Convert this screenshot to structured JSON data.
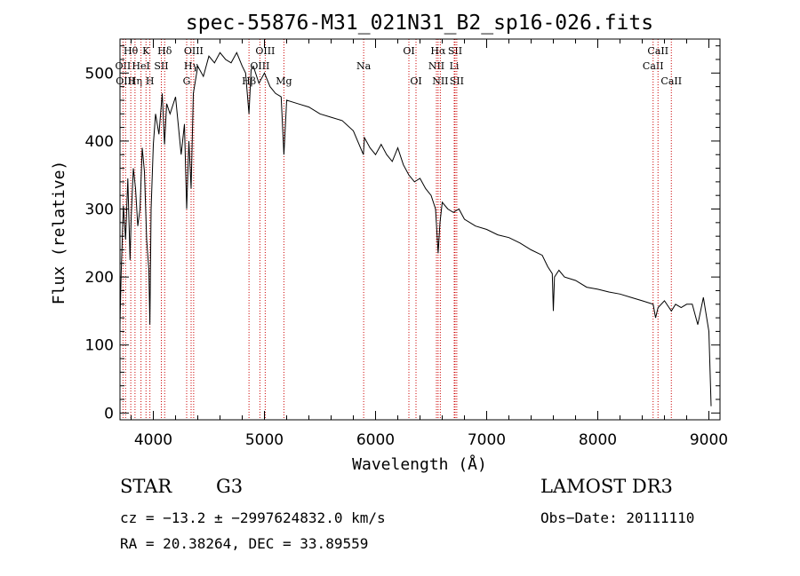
{
  "chart_data": {
    "type": "line",
    "title": "spec-55876-M31_021N31_B2_sp16-026.fits",
    "xlabel": "Wavelength (Å)",
    "ylabel": "Flux (relative)",
    "xlim": [
      3700,
      9100
    ],
    "ylim": [
      -10,
      550
    ],
    "x_ticks": [
      4000,
      5000,
      6000,
      7000,
      8000,
      9000
    ],
    "y_ticks": [
      0,
      100,
      200,
      300,
      400,
      500
    ],
    "grid": false,
    "line_color": "#000000",
    "marker_color": "#cc0000",
    "series": [
      {
        "name": "flux",
        "x": [
          3700,
          3710,
          3730,
          3750,
          3770,
          3790,
          3800,
          3820,
          3840,
          3860,
          3880,
          3900,
          3920,
          3940,
          3960,
          3969,
          3980,
          4000,
          4020,
          4050,
          4080,
          4101,
          4120,
          4150,
          4200,
          4250,
          4280,
          4300,
          4320,
          4340,
          4360,
          4400,
          4450,
          4500,
          4550,
          4600,
          4650,
          4700,
          4750,
          4800,
          4830,
          4861,
          4880,
          4900,
          4950,
          5000,
          5050,
          5100,
          5150,
          5175,
          5200,
          5300,
          5400,
          5500,
          5600,
          5700,
          5800,
          5890,
          5900,
          5950,
          6000,
          6050,
          6100,
          6150,
          6200,
          6250,
          6300,
          6350,
          6400,
          6450,
          6500,
          6540,
          6563,
          6580,
          6600,
          6650,
          6700,
          6750,
          6800,
          6900,
          7000,
          7100,
          7200,
          7300,
          7400,
          7500,
          7550,
          7590,
          7600,
          7610,
          7650,
          7700,
          7800,
          7900,
          8000,
          8100,
          8200,
          8300,
          8400,
          8498,
          8520,
          8542,
          8600,
          8662,
          8700,
          8750,
          8800,
          8850,
          8900,
          8950,
          9000,
          9020
        ],
        "y": [
          130,
          205,
          305,
          255,
          345,
          225,
          285,
          360,
          330,
          275,
          300,
          390,
          355,
          255,
          210,
          130,
          300,
          395,
          440,
          410,
          470,
          395,
          455,
          440,
          465,
          380,
          425,
          300,
          400,
          330,
          470,
          510,
          495,
          525,
          515,
          530,
          520,
          515,
          530,
          510,
          500,
          440,
          505,
          510,
          485,
          500,
          480,
          470,
          465,
          380,
          460,
          455,
          450,
          440,
          435,
          430,
          415,
          380,
          405,
          390,
          380,
          395,
          380,
          370,
          390,
          365,
          350,
          340,
          345,
          330,
          320,
          300,
          235,
          280,
          310,
          300,
          295,
          300,
          285,
          275,
          270,
          262,
          258,
          250,
          240,
          232,
          215,
          205,
          150,
          200,
          210,
          200,
          195,
          185,
          182,
          178,
          175,
          170,
          165,
          160,
          140,
          155,
          165,
          150,
          160,
          155,
          160,
          160,
          130,
          170,
          120,
          10
        ]
      }
    ],
    "line_markers": [
      {
        "x": 3727,
        "label": "OII",
        "row": 1
      },
      {
        "x": 3750,
        "label": "OIII",
        "row": 2
      },
      {
        "x": 3797,
        "label": "Hθ",
        "row": 0
      },
      {
        "x": 3835,
        "label": "Hη",
        "row": 2
      },
      {
        "x": 3889,
        "label": "HeI",
        "row": 1
      },
      {
        "x": 3934,
        "label": "K",
        "row": 0
      },
      {
        "x": 3969,
        "label": "H",
        "row": 2
      },
      {
        "x": 4072,
        "label": "SII",
        "row": 1
      },
      {
        "x": 4102,
        "label": "Hδ",
        "row": 0
      },
      {
        "x": 4300,
        "label": "G",
        "row": 2
      },
      {
        "x": 4340,
        "label": "Hγ",
        "row": 1
      },
      {
        "x": 4363,
        "label": "OIII",
        "row": 0
      },
      {
        "x": 4861,
        "label": "Hβ",
        "row": 2
      },
      {
        "x": 4959,
        "label": "OIII",
        "row": 1
      },
      {
        "x": 5007,
        "label": "OIII",
        "row": 0
      },
      {
        "x": 5175,
        "label": "Mg",
        "row": 2
      },
      {
        "x": 5893,
        "label": "Na",
        "row": 1
      },
      {
        "x": 6300,
        "label": "OI",
        "row": 0
      },
      {
        "x": 6364,
        "label": "OI",
        "row": 2
      },
      {
        "x": 6548,
        "label": "NII",
        "row": 1
      },
      {
        "x": 6563,
        "label": "Hα",
        "row": 0
      },
      {
        "x": 6583,
        "label": "NII",
        "row": 2
      },
      {
        "x": 6708,
        "label": "Li",
        "row": 1
      },
      {
        "x": 6716,
        "label": "SII",
        "row": 0
      },
      {
        "x": 6731,
        "label": "SII",
        "row": 2
      },
      {
        "x": 8498,
        "label": "CaII",
        "row": 1
      },
      {
        "x": 8542,
        "label": "CaII",
        "row": 0
      },
      {
        "x": 8662,
        "label": "CaII",
        "row": 2
      }
    ]
  },
  "info": {
    "object_type": "STAR",
    "object_class": "G3",
    "survey": "LAMOST DR3",
    "cz": "cz = −13.2 ± −2997624832.0 km/s",
    "obs_date": "Obs−Date: 20111110",
    "radec": "RA =  20.38264, DEC =  33.89559"
  }
}
